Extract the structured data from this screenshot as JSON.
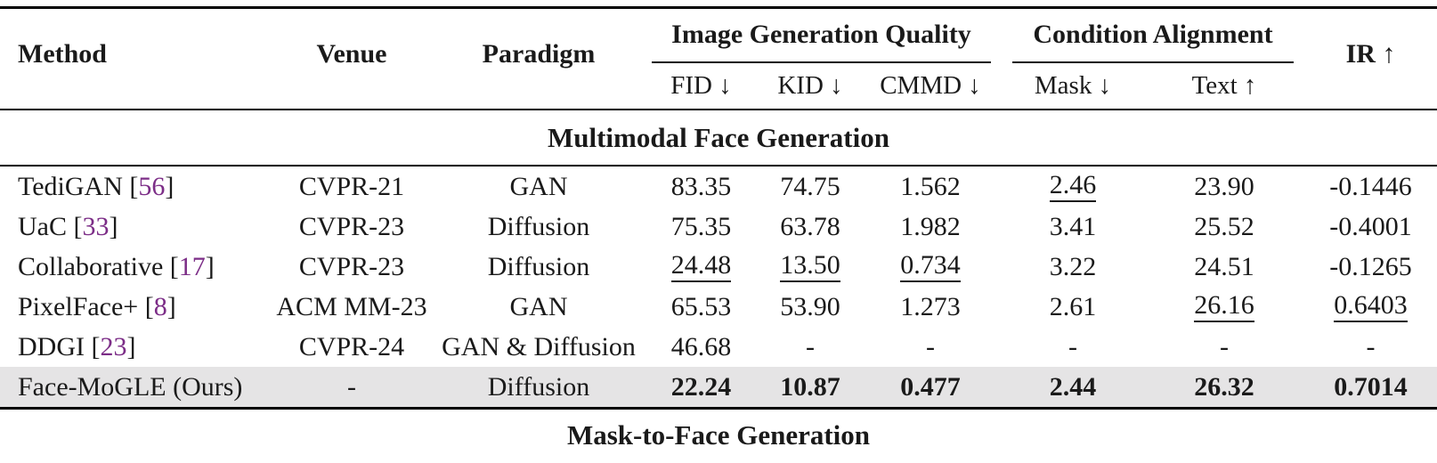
{
  "colors": {
    "citation": "#7c2d87",
    "highlight_row": "#e5e4e5",
    "rule": "#000000"
  },
  "header": {
    "method": "Method",
    "venue": "Venue",
    "paradigm": "Paradigm",
    "ir": "IR ↑",
    "groups": [
      {
        "label": "Image Generation Quality",
        "metrics": [
          "FID ↓",
          "KID ↓",
          "CMMD ↓"
        ]
      },
      {
        "label": "Condition Alignment",
        "metrics": [
          "Mask ↓",
          "Text ↑"
        ]
      }
    ]
  },
  "sections": [
    {
      "title": "Multimodal Face Generation",
      "rows": [
        {
          "method": "TediGAN",
          "cite": "56",
          "venue": "CVPR-21",
          "paradigm": "GAN",
          "fid": "83.35",
          "kid": "74.75",
          "cmmd": "1.562",
          "mask": "2.46",
          "text": "23.90",
          "ir": "-0.1446"
        },
        {
          "method": "UaC",
          "cite": "33",
          "venue": "CVPR-23",
          "paradigm": "Diffusion",
          "fid": "75.35",
          "kid": "63.78",
          "cmmd": "1.982",
          "mask": "3.41",
          "text": "25.52",
          "ir": "-0.4001"
        },
        {
          "method": "Collaborative",
          "cite": "17",
          "venue": "CVPR-23",
          "paradigm": "Diffusion",
          "fid": "24.48",
          "kid": "13.50",
          "cmmd": "0.734",
          "mask": "3.22",
          "text": "24.51",
          "ir": "-0.1265"
        },
        {
          "method": "PixelFace+",
          "cite": "8",
          "venue": "ACM MM-23",
          "paradigm": "GAN",
          "fid": "65.53",
          "kid": "53.90",
          "cmmd": "1.273",
          "mask": "2.61",
          "text": "26.16",
          "ir": "0.6403"
        },
        {
          "method": "DDGI",
          "cite": "23",
          "venue": "CVPR-24",
          "paradigm": "GAN & Diffusion",
          "fid": "46.68",
          "kid": "-",
          "cmmd": "-",
          "mask": "-",
          "text": "-",
          "ir": "-"
        },
        {
          "method": "Face-MoGLE (Ours)",
          "venue": "-",
          "paradigm": "Diffusion",
          "fid": "22.24",
          "kid": "10.87",
          "cmmd": "0.477",
          "mask": "2.44",
          "text": "26.32",
          "ir": "0.7014"
        }
      ]
    },
    {
      "title": "Mask-to-Face Generation"
    }
  ]
}
